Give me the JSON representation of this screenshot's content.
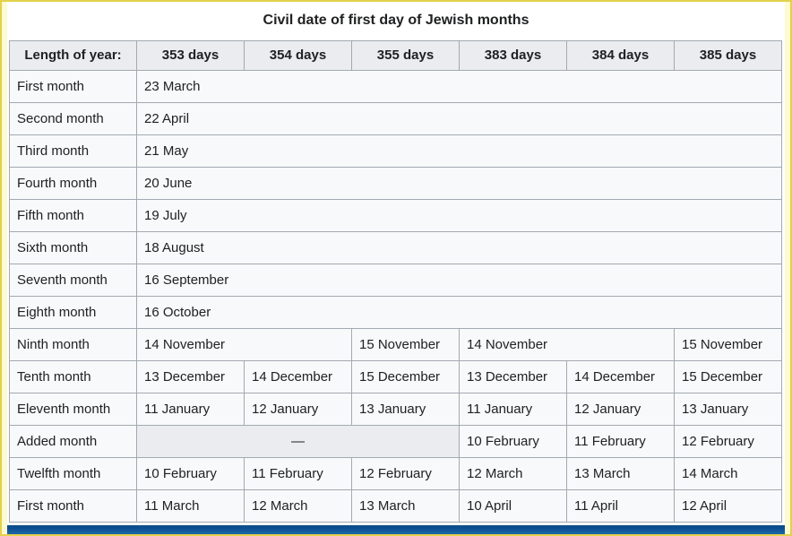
{
  "table": {
    "caption": "Civil date of first day of Jewish months",
    "header": {
      "label": "Length of year:",
      "columns": [
        "353 days",
        "354 days",
        "355 days",
        "383 days",
        "384 days",
        "385 days"
      ]
    },
    "rows": [
      {
        "label": "First month",
        "cells": [
          {
            "text": "23 March",
            "span": 6
          }
        ]
      },
      {
        "label": "Second month",
        "cells": [
          {
            "text": "22 April",
            "span": 6
          }
        ]
      },
      {
        "label": "Third month",
        "cells": [
          {
            "text": "21 May",
            "span": 6
          }
        ]
      },
      {
        "label": "Fourth month",
        "cells": [
          {
            "text": "20 June",
            "span": 6
          }
        ]
      },
      {
        "label": "Fifth month",
        "cells": [
          {
            "text": "19 July",
            "span": 6
          }
        ]
      },
      {
        "label": "Sixth month",
        "cells": [
          {
            "text": "18 August",
            "span": 6
          }
        ]
      },
      {
        "label": "Seventh month",
        "cells": [
          {
            "text": "16 September",
            "span": 6
          }
        ]
      },
      {
        "label": "Eighth month",
        "cells": [
          {
            "text": "16 October",
            "span": 6
          }
        ]
      },
      {
        "label": "Ninth month",
        "cells": [
          {
            "text": "14 November",
            "span": 2
          },
          {
            "text": "15 November",
            "span": 1
          },
          {
            "text": "14 November",
            "span": 2
          },
          {
            "text": "15 November",
            "span": 1
          }
        ]
      },
      {
        "label": "Tenth month",
        "cells": [
          {
            "text": "13 December",
            "span": 1
          },
          {
            "text": "14 December",
            "span": 1
          },
          {
            "text": "15 December",
            "span": 1
          },
          {
            "text": "13 December",
            "span": 1
          },
          {
            "text": "14 December",
            "span": 1
          },
          {
            "text": "15 December",
            "span": 1
          }
        ]
      },
      {
        "label": "Eleventh month",
        "cells": [
          {
            "text": "11 January",
            "span": 1
          },
          {
            "text": "12 January",
            "span": 1
          },
          {
            "text": "13 January",
            "span": 1
          },
          {
            "text": "11 January",
            "span": 1
          },
          {
            "text": "12 January",
            "span": 1
          },
          {
            "text": "13 January",
            "span": 1
          }
        ]
      },
      {
        "label": "Added month",
        "cells": [
          {
            "text": "—",
            "span": 3,
            "empty": true
          },
          {
            "text": "10 February",
            "span": 1
          },
          {
            "text": "11 February",
            "span": 1
          },
          {
            "text": "12 February",
            "span": 1
          }
        ]
      },
      {
        "label": "Twelfth month",
        "cells": [
          {
            "text": "10 February",
            "span": 1
          },
          {
            "text": "11 February",
            "span": 1
          },
          {
            "text": "12 February",
            "span": 1
          },
          {
            "text": "12 March",
            "span": 1
          },
          {
            "text": "13 March",
            "span": 1
          },
          {
            "text": "14 March",
            "span": 1
          }
        ]
      },
      {
        "label": "First month",
        "cells": [
          {
            "text": "11 March",
            "span": 1
          },
          {
            "text": "12 March",
            "span": 1
          },
          {
            "text": "13 March",
            "span": 1
          },
          {
            "text": "10 April",
            "span": 1
          },
          {
            "text": "11 April",
            "span": 1
          },
          {
            "text": "12 April",
            "span": 1
          }
        ]
      }
    ]
  },
  "colors": {
    "header_bg": "#eaecf0",
    "cell_bg": "#f8f9fa",
    "empty_cell_bg": "#eaecf0",
    "table_border": "#a2a9b1",
    "text": "#202122",
    "navbox_bar_top": "#0a4a89",
    "navbox_bar_bottom": "#1f67a7",
    "navbox_strip": "#dbe6f0",
    "frame_bg": "#fdfbd0",
    "frame_border": "#e3d14b"
  }
}
